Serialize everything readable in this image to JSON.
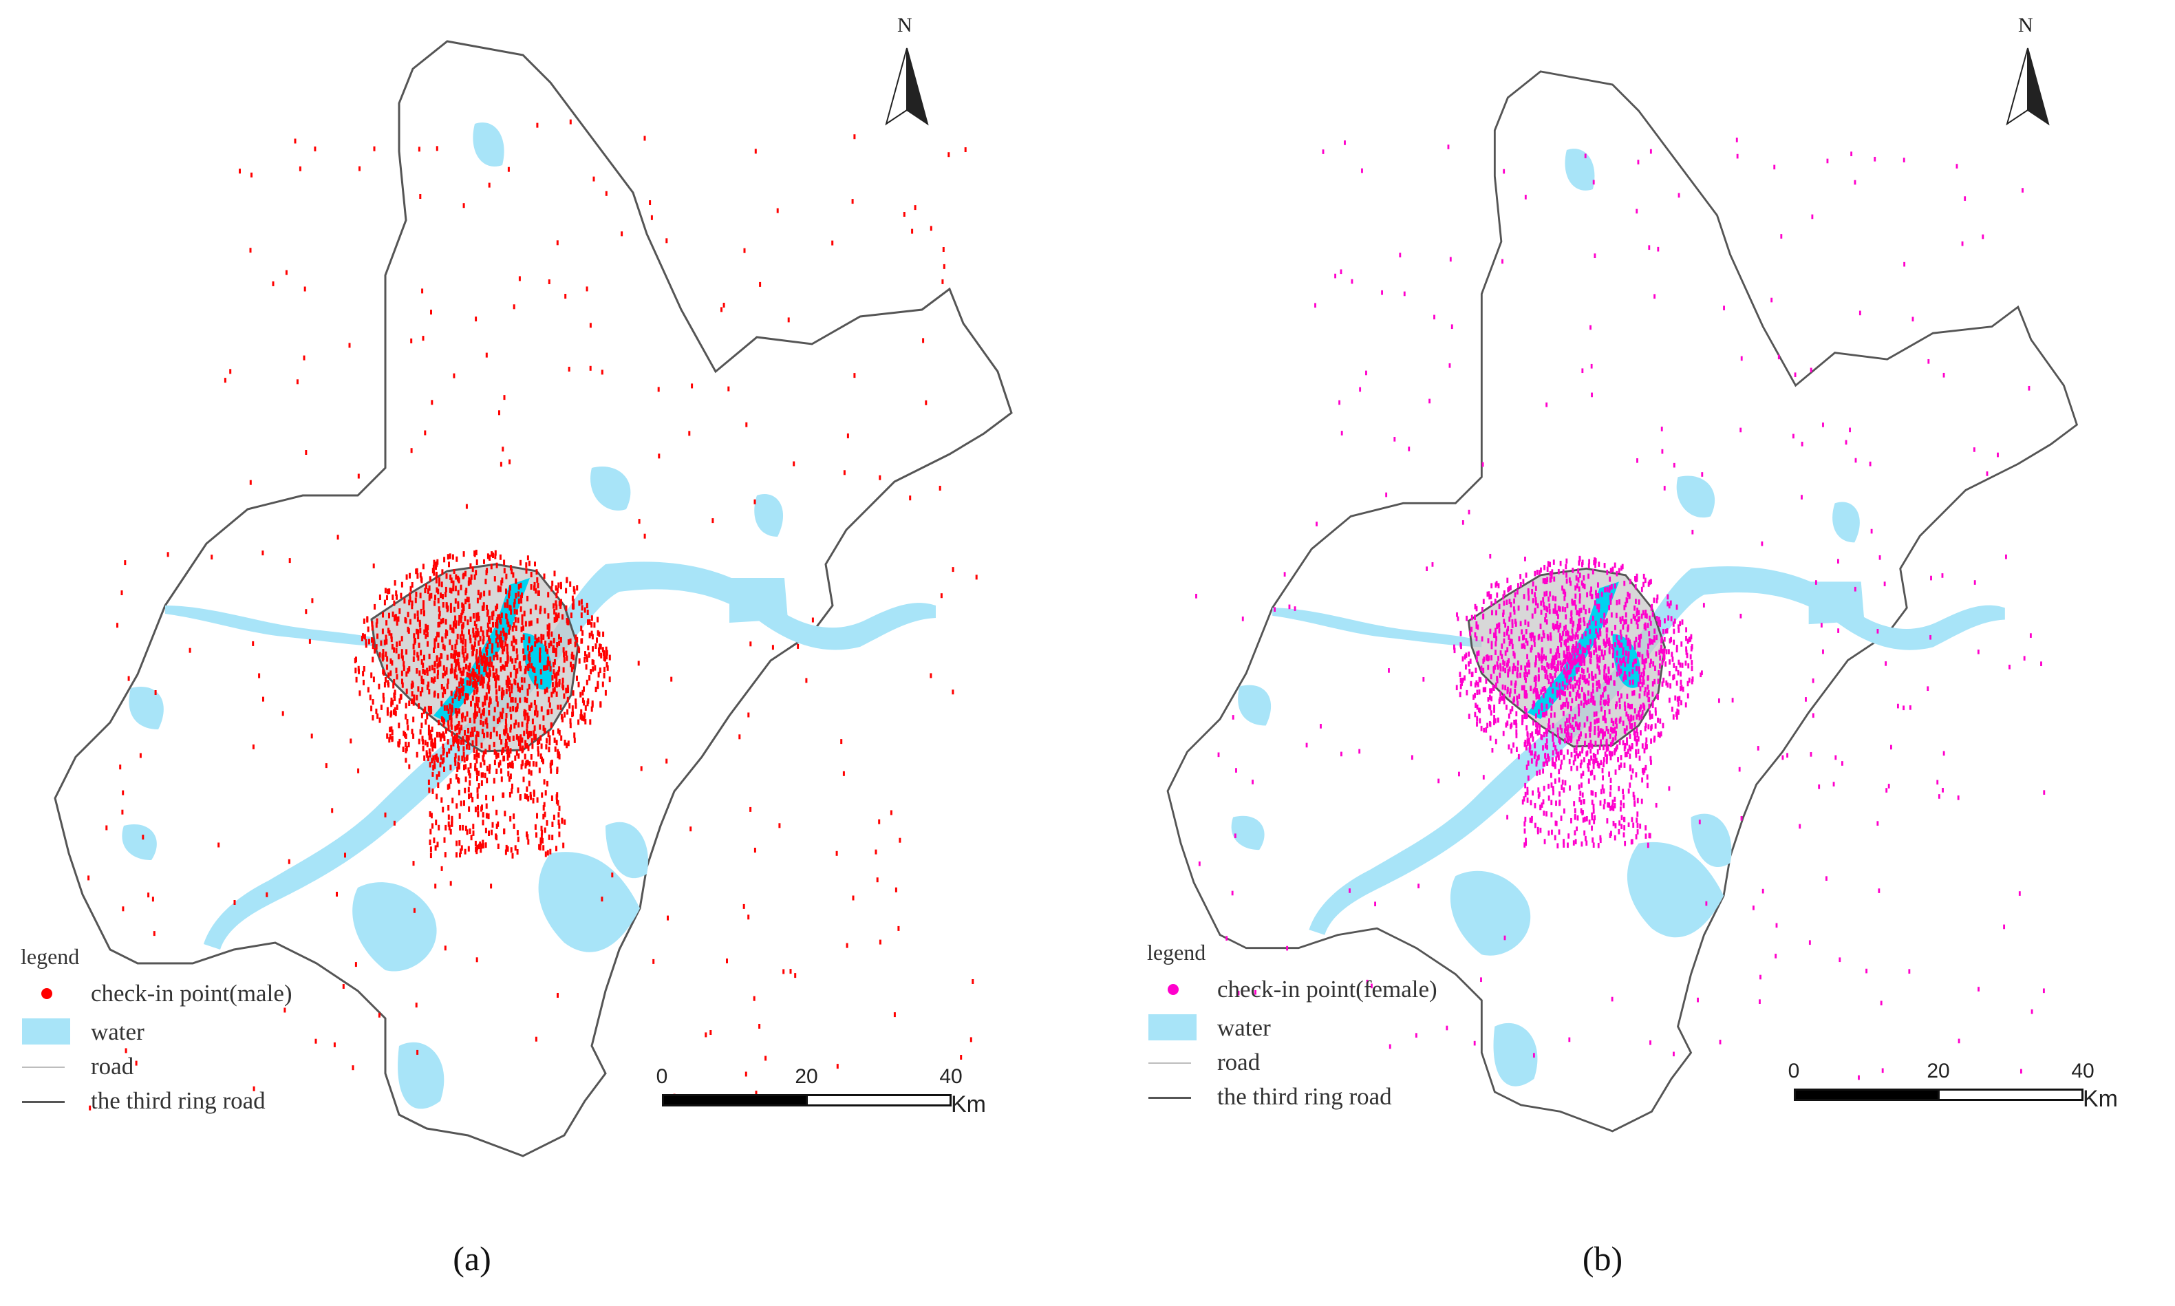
{
  "colors": {
    "water": "#a8e4f8",
    "land_fill": "#ffffff",
    "boundary": "#555555",
    "ring_fill": "#c8c8c8",
    "male_points": "#ff0000",
    "female_points": "#ff00cc",
    "river_core": "#00d2f0"
  },
  "panels": [
    {
      "id": "a",
      "caption": "(a)",
      "point_color": "#ff0000",
      "legend": {
        "title": "legend",
        "items": [
          {
            "symbol": "dot",
            "label": "check-in point(male)"
          },
          {
            "symbol": "water",
            "label": "water"
          },
          {
            "symbol": "road",
            "label": "road"
          },
          {
            "symbol": "ring",
            "label": "the third ring road"
          }
        ]
      },
      "scale": {
        "ticks": [
          "0",
          "20",
          "40"
        ],
        "unit": "Km"
      },
      "north": "N"
    },
    {
      "id": "b",
      "caption": "(b)",
      "point_color": "#ff00cc",
      "legend": {
        "title": "legend",
        "items": [
          {
            "symbol": "dot",
            "label": "check-in point(female)"
          },
          {
            "symbol": "water",
            "label": "water"
          },
          {
            "symbol": "road",
            "label": "road"
          },
          {
            "symbol": "ring",
            "label": "the third ring road"
          }
        ]
      },
      "scale": {
        "ticks": [
          "0",
          "20",
          "40"
        ],
        "unit": "Km"
      },
      "north": "N"
    }
  ]
}
